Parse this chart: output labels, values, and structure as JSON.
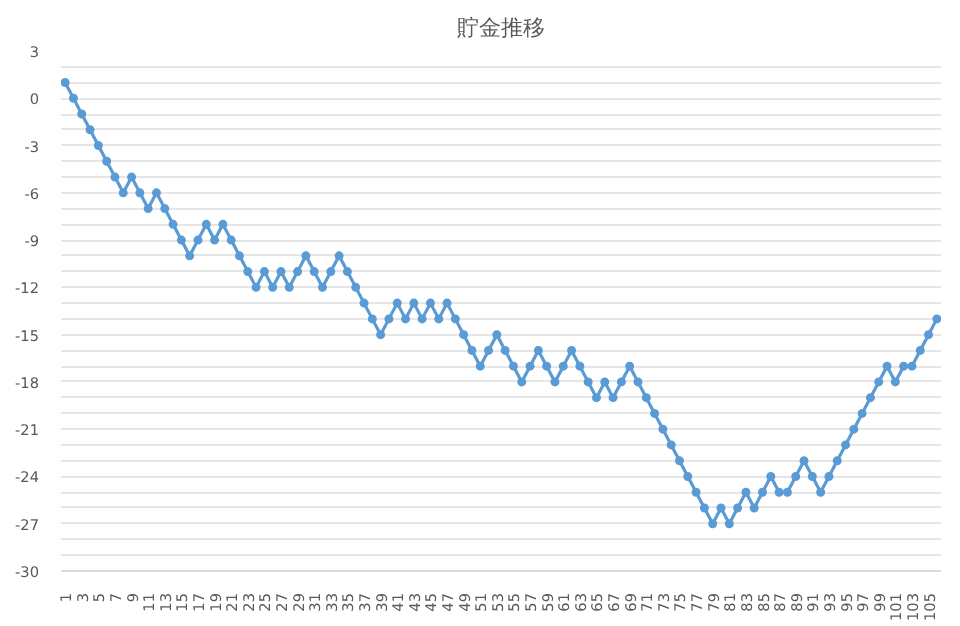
{
  "chart_data": {
    "type": "line",
    "title": "貯金推移",
    "categories": [
      "1",
      null,
      "3",
      null,
      "5",
      null,
      "7",
      null,
      "9",
      null,
      "11",
      null,
      "13",
      null,
      "15",
      null,
      "17",
      null,
      "19",
      null,
      "21",
      null,
      "23",
      null,
      "25",
      null,
      "27",
      null,
      "29",
      null,
      "31",
      null,
      "33",
      null,
      "35",
      null,
      "37",
      null,
      "39",
      null,
      "41",
      null,
      "43",
      null,
      "45",
      null,
      "47",
      null,
      "49",
      null,
      "51",
      null,
      "53",
      null,
      "55",
      null,
      "57",
      null,
      "59",
      null,
      "61",
      null,
      "63",
      null,
      "65",
      null,
      "67",
      null,
      "69",
      null,
      "71",
      null,
      "73",
      null,
      "75",
      null,
      "77",
      null,
      "79",
      null,
      "81",
      null,
      "83",
      null,
      "85",
      null,
      "87",
      null,
      "89",
      null,
      "91",
      null,
      "93",
      null,
      "95",
      null,
      "97",
      null,
      "99",
      null,
      "101",
      null,
      "103",
      null,
      "105",
      null
    ],
    "series": [
      {
        "color": "#5b9bd5",
        "values": [
          1,
          0,
          -1,
          -2,
          -3,
          -4,
          -5,
          -6,
          -5,
          -6,
          -7,
          -6,
          -7,
          -8,
          -9,
          -10,
          -9,
          -8,
          -9,
          -8,
          -9,
          -10,
          -11,
          -12,
          -11,
          -12,
          -11,
          -12,
          -11,
          -10,
          -11,
          -12,
          -11,
          -10,
          -11,
          -12,
          -13,
          -14,
          -15,
          -14,
          -13,
          -14,
          -13,
          -14,
          -13,
          -14,
          -13,
          -14,
          -15,
          -16,
          -17,
          -16,
          -15,
          -16,
          -17,
          -18,
          -17,
          -16,
          -17,
          -18,
          -17,
          -16,
          -17,
          -18,
          -19,
          -18,
          -19,
          -18,
          -17,
          -18,
          -19,
          -20,
          -21,
          -22,
          -23,
          -24,
          -25,
          -26,
          -27,
          -26,
          -27,
          -26,
          -25,
          -26,
          -25,
          -24,
          -25,
          -25,
          -24,
          -23,
          -24,
          -25,
          -24,
          -23,
          -22,
          -21,
          -20,
          -19,
          -18,
          -17,
          -18,
          -17,
          -17,
          -16,
          -15,
          -14
        ]
      }
    ],
    "ylim": [
      -30,
      3
    ],
    "yticks": [
      -30,
      {
        "value": -29,
        "label": null
      },
      {
        "value": -28,
        "label": null
      },
      -27,
      {
        "value": -26,
        "label": null
      },
      {
        "value": -25,
        "label": null
      },
      -24,
      {
        "value": -23,
        "label": null
      },
      {
        "value": -22,
        "label": null
      },
      -21,
      {
        "value": -20,
        "label": null
      },
      {
        "value": -19,
        "label": null
      },
      -18,
      {
        "value": -17,
        "label": null
      },
      {
        "value": -16,
        "label": null
      },
      -15,
      {
        "value": -14,
        "label": null
      },
      {
        "value": -13,
        "label": null
      },
      -12,
      {
        "value": -11,
        "label": null
      },
      {
        "value": -10,
        "label": null
      },
      -9,
      {
        "value": -8,
        "label": null
      },
      {
        "value": -7,
        "label": null
      },
      -6,
      {
        "value": -5,
        "label": null
      },
      {
        "value": -4,
        "label": null
      },
      -3,
      {
        "value": -2,
        "label": null
      },
      {
        "value": -1,
        "label": null
      },
      0,
      {
        "value": 1,
        "label": null
      },
      {
        "value": 2,
        "label": null
      },
      3
    ],
    "grid": "y",
    "marker": "circle",
    "line_style": "solid"
  }
}
